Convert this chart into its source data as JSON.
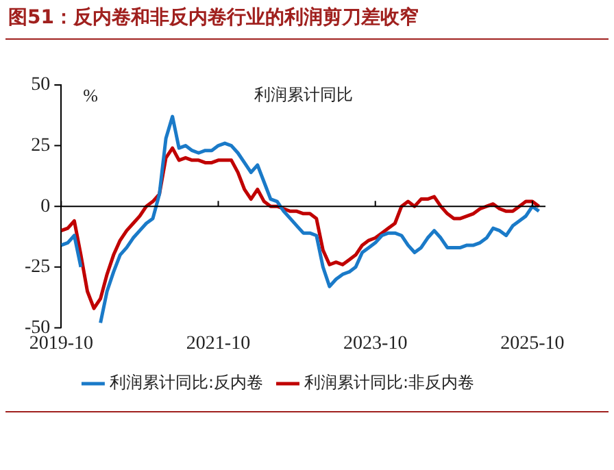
{
  "chart_data": {
    "type": "line",
    "title": "图51：反内卷和非反内卷行业的利润剪刀差收窄",
    "subtitle": "利润累计同比",
    "ylabel": "%",
    "x": [
      "2019-10",
      "2019-11",
      "2019-12",
      "2020-01",
      "2020-02",
      "2020-03",
      "2020-04",
      "2020-05",
      "2020-06",
      "2020-07",
      "2020-08",
      "2020-09",
      "2020-10",
      "2020-11",
      "2020-12",
      "2021-01",
      "2021-02",
      "2021-03",
      "2021-04",
      "2021-05",
      "2021-06",
      "2021-07",
      "2021-08",
      "2021-09",
      "2021-10",
      "2021-11",
      "2021-12",
      "2022-01",
      "2022-02",
      "2022-03",
      "2022-04",
      "2022-05",
      "2022-06",
      "2022-07",
      "2022-08",
      "2022-09",
      "2022-10",
      "2022-11",
      "2022-12",
      "2023-01",
      "2023-02",
      "2023-03",
      "2023-04",
      "2023-05",
      "2023-06",
      "2023-07",
      "2023-08",
      "2023-09",
      "2023-10",
      "2023-11",
      "2023-12",
      "2024-01",
      "2024-02",
      "2024-03",
      "2024-04",
      "2024-05",
      "2024-06",
      "2024-07",
      "2024-08",
      "2024-09",
      "2024-10",
      "2024-11",
      "2024-12",
      "2025-01",
      "2025-02",
      "2025-03",
      "2025-04",
      "2025-05",
      "2025-06",
      "2025-07",
      "2025-08",
      "2025-09",
      "2025-10",
      "2025-11"
    ],
    "series": [
      {
        "name": "利润累计同比:反内卷",
        "color": "#1a7ac8",
        "values": [
          -16,
          -15,
          -12,
          -25,
          null,
          null,
          -48,
          -35,
          -27,
          -20,
          -17,
          -13,
          -10,
          -7,
          -5,
          5,
          28,
          37,
          24,
          25,
          23,
          22,
          23,
          23,
          25,
          26,
          25,
          22,
          18,
          14,
          17,
          10,
          3,
          2,
          -2,
          -5,
          -8,
          -11,
          -11,
          -12,
          -25,
          -33,
          -30,
          -28,
          -27,
          -25,
          -19,
          -17,
          -15,
          -12,
          -11,
          -11,
          -12,
          -16,
          -19,
          -17,
          -13,
          -10,
          -13,
          -17,
          -17,
          -17,
          -16,
          -16,
          -15,
          -13,
          -9,
          -10,
          -12,
          -8,
          -6,
          -4,
          0,
          -2
        ]
      },
      {
        "name": "利润累计同比:非反内卷",
        "color": "#c00000",
        "values": [
          -10,
          -9,
          -6,
          -20,
          -35,
          -42,
          -38,
          -28,
          -20,
          -14,
          -10,
          -7,
          -4,
          0,
          2,
          5,
          20,
          24,
          19,
          20,
          19,
          19,
          18,
          18,
          19,
          19,
          19,
          14,
          7,
          3,
          7,
          2,
          0,
          0,
          -1,
          -2,
          -2,
          -3,
          -3,
          -5,
          -18,
          -24,
          -23,
          -24,
          -22,
          -20,
          -16,
          -14,
          -13,
          -11,
          -9,
          -7,
          0,
          2,
          0,
          3,
          3,
          4,
          0,
          -3,
          -5,
          -5,
          -4,
          -3,
          -1,
          0,
          1,
          -1,
          -2,
          -2,
          0,
          2,
          2,
          0
        ]
      }
    ],
    "xlim": [
      "2019-10",
      "2025-12"
    ],
    "xticks": [
      "2019-10",
      "2021-10",
      "2023-10",
      "2025-10"
    ],
    "ylim": [
      -50,
      50
    ],
    "yticks": [
      -50,
      -25,
      0,
      25,
      50
    ],
    "ref_lines": [
      {
        "axis": "y",
        "value": 0,
        "color": "#000000"
      }
    ],
    "grid": false,
    "legend": "bottom",
    "marker": "none",
    "line_style": "solid"
  }
}
